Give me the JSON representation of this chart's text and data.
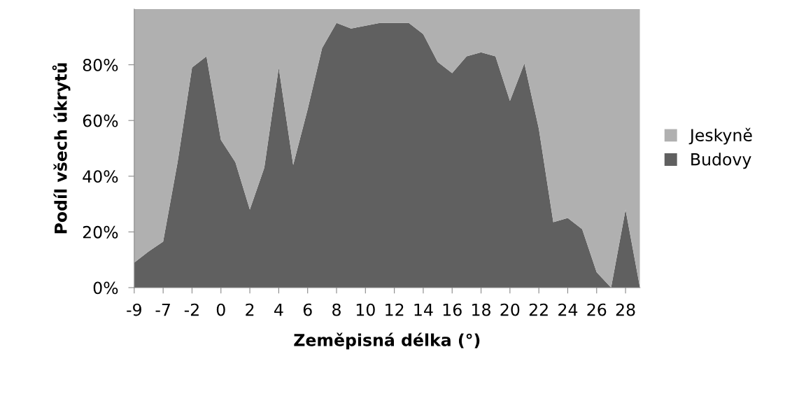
{
  "chart_data": {
    "type": "area",
    "stacked": true,
    "xlabel": "Zeměpisná délka (°)",
    "ylabel": "Podíl všech úkrytů",
    "categories": [
      "-9",
      null,
      "-7",
      null,
      "-2",
      null,
      "0",
      null,
      "2",
      null,
      "4",
      null,
      "6",
      null,
      "8",
      null,
      "10",
      null,
      "12",
      null,
      "14",
      null,
      "16",
      null,
      "18",
      null,
      "20",
      null,
      "22",
      null,
      "24",
      null,
      "26",
      null,
      "28",
      null
    ],
    "series": [
      {
        "name": "Budovy",
        "color": "#606060",
        "values": [
          9,
          13,
          16.5,
          45,
          79,
          83,
          53,
          45,
          28,
          43,
          79,
          44,
          64,
          86,
          95,
          93,
          94,
          95,
          95,
          95,
          91,
          81,
          77,
          83,
          84.5,
          83,
          67,
          80.5,
          57,
          23.5,
          25,
          21,
          5.5,
          0,
          28,
          0
        ]
      },
      {
        "name": "Jeskyně",
        "color": "#b0b0b0",
        "values": [
          91,
          87,
          83.5,
          55,
          21,
          17,
          47,
          55,
          72,
          57,
          21,
          56,
          36,
          14,
          5,
          7,
          6,
          5,
          5,
          5,
          9,
          19,
          23,
          17,
          15.5,
          17,
          33,
          19.5,
          43,
          76.5,
          75,
          79,
          94.5,
          100,
          72,
          100
        ]
      }
    ],
    "ylim": [
      0,
      100
    ],
    "yticks": [
      {
        "value": 0,
        "label": "0%"
      },
      {
        "value": 20,
        "label": "20%"
      },
      {
        "value": 40,
        "label": "40%"
      },
      {
        "value": 60,
        "label": "60%"
      },
      {
        "value": 80,
        "label": "80%"
      }
    ],
    "grid": false,
    "legend": "right"
  }
}
